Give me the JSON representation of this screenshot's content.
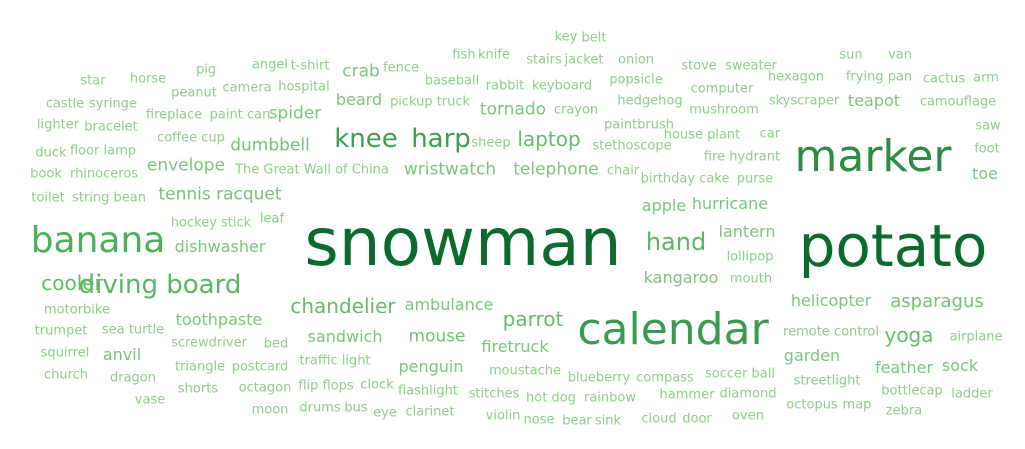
{
  "words": [
    {
      "text": "snowman",
      "size": 66,
      "color": "#0b6b2f"
    },
    {
      "text": "potato",
      "size": 58,
      "color": "#0b6b2f"
    },
    {
      "text": "marker",
      "size": 44,
      "color": "#2f8a46"
    },
    {
      "text": "calendar",
      "size": 44,
      "color": "#3a9a4f"
    },
    {
      "text": "banana",
      "size": 36,
      "color": "#4caf5a"
    },
    {
      "text": "knee",
      "size": 26,
      "color": "#3f9e52"
    },
    {
      "text": "harp",
      "size": 26,
      "color": "#3f9e52"
    },
    {
      "text": "diving board",
      "size": 26,
      "color": "#5ab664"
    },
    {
      "text": "hand",
      "size": 24,
      "color": "#5ab664"
    },
    {
      "text": "cooler",
      "size": 20,
      "color": "#66bb6a"
    },
    {
      "text": "chandelier",
      "size": 20,
      "color": "#66bb6a"
    },
    {
      "text": "laptop",
      "size": 20,
      "color": "#66bb6a"
    },
    {
      "text": "parrot",
      "size": 20,
      "color": "#66bb6a"
    },
    {
      "text": "yoga",
      "size": 20,
      "color": "#66bb6a"
    },
    {
      "text": "asparagus",
      "size": 18,
      "color": "#74c276"
    },
    {
      "text": "tennis racquet",
      "size": 17,
      "color": "#74c276"
    },
    {
      "text": "mouse",
      "size": 17,
      "color": "#74c276"
    },
    {
      "text": "dumbbell",
      "size": 17,
      "color": "#74c276"
    },
    {
      "text": "envelope",
      "size": 17,
      "color": "#7cc57d"
    },
    {
      "text": "wristwatch",
      "size": 17,
      "color": "#7cc57d"
    },
    {
      "text": "telephone",
      "size": 17,
      "color": "#7cc57d"
    },
    {
      "text": "crab",
      "size": 17,
      "color": "#7cc57d"
    },
    {
      "text": "spider",
      "size": 17,
      "color": "#7cc57d"
    },
    {
      "text": "tornado",
      "size": 17,
      "color": "#7cc57d"
    },
    {
      "text": "beard",
      "size": 16,
      "color": "#7cc57d"
    },
    {
      "text": "teapot",
      "size": 16,
      "color": "#7cc57d"
    },
    {
      "text": "toe",
      "size": 16,
      "color": "#7cc57d"
    },
    {
      "text": "apple",
      "size": 16,
      "color": "#7cc57d"
    },
    {
      "text": "hurricane",
      "size": 16,
      "color": "#7cc57d"
    },
    {
      "text": "lantern",
      "size": 16,
      "color": "#7cc57d"
    },
    {
      "text": "kangaroo",
      "size": 16,
      "color": "#7cc57d"
    },
    {
      "text": "helicopter",
      "size": 16,
      "color": "#7cc57d"
    },
    {
      "text": "toothpaste",
      "size": 16,
      "color": "#7cc57d"
    },
    {
      "text": "ambulance",
      "size": 16,
      "color": "#7cc57d"
    },
    {
      "text": "sandwich",
      "size": 16,
      "color": "#7cc57d"
    },
    {
      "text": "firetruck",
      "size": 16,
      "color": "#7cc57d"
    },
    {
      "text": "garden",
      "size": 16,
      "color": "#7cc57d"
    },
    {
      "text": "feather",
      "size": 16,
      "color": "#7cc57d"
    },
    {
      "text": "sock",
      "size": 16,
      "color": "#7cc57d"
    },
    {
      "text": "penguin",
      "size": 16,
      "color": "#7cc57d"
    },
    {
      "text": "anvil",
      "size": 16,
      "color": "#7cc57d"
    },
    {
      "text": "dishwasher",
      "size": 16,
      "color": "#7cc57d"
    },
    {
      "text": "key",
      "size": 13,
      "color": "#8fce8a"
    },
    {
      "text": "belt",
      "size": 13,
      "color": "#8fce8a"
    },
    {
      "text": "fish",
      "size": 13,
      "color": "#8fce8a"
    },
    {
      "text": "knife",
      "size": 13,
      "color": "#8fce8a"
    },
    {
      "text": "stairs",
      "size": 13,
      "color": "#8fce8a"
    },
    {
      "text": "jacket",
      "size": 13,
      "color": "#8fce8a"
    },
    {
      "text": "onion",
      "size": 13,
      "color": "#8fce8a"
    },
    {
      "text": "sun",
      "size": 13,
      "color": "#8fce8a"
    },
    {
      "text": "van",
      "size": 13,
      "color": "#8fce8a"
    },
    {
      "text": "pig",
      "size": 13,
      "color": "#8fce8a"
    },
    {
      "text": "angel",
      "size": 13,
      "color": "#8fce8a"
    },
    {
      "text": "t-shirt",
      "size": 13,
      "color": "#8fce8a"
    },
    {
      "text": "fence",
      "size": 13,
      "color": "#8fce8a"
    },
    {
      "text": "stove",
      "size": 13,
      "color": "#8fce8a"
    },
    {
      "text": "sweater",
      "size": 13,
      "color": "#8fce8a"
    },
    {
      "text": "star",
      "size": 13,
      "color": "#8fce8a"
    },
    {
      "text": "horse",
      "size": 13,
      "color": "#8fce8a"
    },
    {
      "text": "peanut",
      "size": 13,
      "color": "#8fce8a"
    },
    {
      "text": "camera",
      "size": 13,
      "color": "#8fce8a"
    },
    {
      "text": "hospital",
      "size": 13,
      "color": "#8fce8a"
    },
    {
      "text": "baseball",
      "size": 13,
      "color": "#8fce8a"
    },
    {
      "text": "rabbit",
      "size": 13,
      "color": "#8fce8a"
    },
    {
      "text": "keyboard",
      "size": 13,
      "color": "#8fce8a"
    },
    {
      "text": "popsicle",
      "size": 13,
      "color": "#8fce8a"
    },
    {
      "text": "computer",
      "size": 13,
      "color": "#8fce8a"
    },
    {
      "text": "hexagon",
      "size": 13,
      "color": "#8fce8a"
    },
    {
      "text": "frying pan",
      "size": 13,
      "color": "#8fce8a"
    },
    {
      "text": "cactus",
      "size": 13,
      "color": "#8fce8a"
    },
    {
      "text": "arm",
      "size": 13,
      "color": "#8fce8a"
    },
    {
      "text": "castle",
      "size": 13,
      "color": "#8fce8a"
    },
    {
      "text": "syringe",
      "size": 13,
      "color": "#8fce8a"
    },
    {
      "text": "fireplace",
      "size": 13,
      "color": "#8fce8a"
    },
    {
      "text": "paint can",
      "size": 13,
      "color": "#8fce8a"
    },
    {
      "text": "pickup truck",
      "size": 13,
      "color": "#8fce8a"
    },
    {
      "text": "crayon",
      "size": 13,
      "color": "#8fce8a"
    },
    {
      "text": "hedgehog",
      "size": 13,
      "color": "#8fce8a"
    },
    {
      "text": "mushroom",
      "size": 13,
      "color": "#8fce8a"
    },
    {
      "text": "skyscraper",
      "size": 13,
      "color": "#8fce8a"
    },
    {
      "text": "camouflage",
      "size": 13,
      "color": "#8fce8a"
    },
    {
      "text": "lighter",
      "size": 13,
      "color": "#8fce8a"
    },
    {
      "text": "bracelet",
      "size": 13,
      "color": "#8fce8a"
    },
    {
      "text": "coffee cup",
      "size": 13,
      "color": "#8fce8a"
    },
    {
      "text": "paintbrush",
      "size": 13,
      "color": "#8fce8a"
    },
    {
      "text": "saw",
      "size": 13,
      "color": "#8fce8a"
    },
    {
      "text": "duck",
      "size": 13,
      "color": "#8fce8a"
    },
    {
      "text": "floor lamp",
      "size": 13,
      "color": "#8fce8a"
    },
    {
      "text": "sheep",
      "size": 13,
      "color": "#8fce8a"
    },
    {
      "text": "stethoscope",
      "size": 13,
      "color": "#8fce8a"
    },
    {
      "text": "house plant",
      "size": 13,
      "color": "#8fce8a"
    },
    {
      "text": "car",
      "size": 13,
      "color": "#8fce8a"
    },
    {
      "text": "foot",
      "size": 13,
      "color": "#8fce8a"
    },
    {
      "text": "book",
      "size": 13,
      "color": "#8fce8a"
    },
    {
      "text": "rhinoceros",
      "size": 13,
      "color": "#8fce8a"
    },
    {
      "text": "The Great Wall of China",
      "size": 13,
      "color": "#8fce8a"
    },
    {
      "text": "chair",
      "size": 13,
      "color": "#8fce8a"
    },
    {
      "text": "fire hydrant",
      "size": 13,
      "color": "#8fce8a"
    },
    {
      "text": "birthday cake",
      "size": 13,
      "color": "#8fce8a"
    },
    {
      "text": "purse",
      "size": 13,
      "color": "#8fce8a"
    },
    {
      "text": "toilet",
      "size": 13,
      "color": "#8fce8a"
    },
    {
      "text": "string bean",
      "size": 13,
      "color": "#8fce8a"
    },
    {
      "text": "hockey stick",
      "size": 13,
      "color": "#8fce8a"
    },
    {
      "text": "leaf",
      "size": 13,
      "color": "#8fce8a"
    },
    {
      "text": "lollipop",
      "size": 13,
      "color": "#8fce8a"
    },
    {
      "text": "mouth",
      "size": 13,
      "color": "#8fce8a"
    },
    {
      "text": "motorbike",
      "size": 13,
      "color": "#8fce8a"
    },
    {
      "text": "trumpet",
      "size": 13,
      "color": "#8fce8a"
    },
    {
      "text": "sea turtle",
      "size": 13,
      "color": "#8fce8a"
    },
    {
      "text": "remote control",
      "size": 13,
      "color": "#8fce8a"
    },
    {
      "text": "airplane",
      "size": 13,
      "color": "#8fce8a"
    },
    {
      "text": "squirrel",
      "size": 13,
      "color": "#8fce8a"
    },
    {
      "text": "screwdriver",
      "size": 13,
      "color": "#8fce8a"
    },
    {
      "text": "bed",
      "size": 13,
      "color": "#8fce8a"
    },
    {
      "text": "church",
      "size": 13,
      "color": "#8fce8a"
    },
    {
      "text": "triangle",
      "size": 13,
      "color": "#8fce8a"
    },
    {
      "text": "postcard",
      "size": 13,
      "color": "#8fce8a"
    },
    {
      "text": "traffic light",
      "size": 13,
      "color": "#8fce8a"
    },
    {
      "text": "moustache",
      "size": 13,
      "color": "#8fce8a"
    },
    {
      "text": "dragon",
      "size": 13,
      "color": "#8fce8a"
    },
    {
      "text": "blueberry",
      "size": 13,
      "color": "#8fce8a"
    },
    {
      "text": "compass",
      "size": 13,
      "color": "#8fce8a"
    },
    {
      "text": "soccer ball",
      "size": 13,
      "color": "#8fce8a"
    },
    {
      "text": "streetlight",
      "size": 13,
      "color": "#8fce8a"
    },
    {
      "text": "vase",
      "size": 13,
      "color": "#8fce8a"
    },
    {
      "text": "shorts",
      "size": 13,
      "color": "#8fce8a"
    },
    {
      "text": "octagon",
      "size": 13,
      "color": "#8fce8a"
    },
    {
      "text": "flip flops",
      "size": 13,
      "color": "#8fce8a"
    },
    {
      "text": "clock",
      "size": 13,
      "color": "#8fce8a"
    },
    {
      "text": "flashlight",
      "size": 13,
      "color": "#8fce8a"
    },
    {
      "text": "stitches",
      "size": 13,
      "color": "#8fce8a"
    },
    {
      "text": "hot dog",
      "size": 13,
      "color": "#8fce8a"
    },
    {
      "text": "rainbow",
      "size": 13,
      "color": "#8fce8a"
    },
    {
      "text": "hammer",
      "size": 13,
      "color": "#8fce8a"
    },
    {
      "text": "diamond",
      "size": 13,
      "color": "#8fce8a"
    },
    {
      "text": "bottlecap",
      "size": 13,
      "color": "#8fce8a"
    },
    {
      "text": "ladder",
      "size": 13,
      "color": "#8fce8a"
    },
    {
      "text": "moon",
      "size": 13,
      "color": "#8fce8a"
    },
    {
      "text": "drums",
      "size": 13,
      "color": "#8fce8a"
    },
    {
      "text": "bus",
      "size": 13,
      "color": "#8fce8a"
    },
    {
      "text": "eye",
      "size": 13,
      "color": "#8fce8a"
    },
    {
      "text": "clarinet",
      "size": 13,
      "color": "#8fce8a"
    },
    {
      "text": "violin",
      "size": 13,
      "color": "#8fce8a"
    },
    {
      "text": "nose",
      "size": 13,
      "color": "#8fce8a"
    },
    {
      "text": "bear",
      "size": 13,
      "color": "#8fce8a"
    },
    {
      "text": "sink",
      "size": 13,
      "color": "#8fce8a"
    },
    {
      "text": "cloud",
      "size": 13,
      "color": "#8fce8a"
    },
    {
      "text": "door",
      "size": 13,
      "color": "#8fce8a"
    },
    {
      "text": "oven",
      "size": 13,
      "color": "#8fce8a"
    },
    {
      "text": "octopus",
      "size": 13,
      "color": "#8fce8a"
    },
    {
      "text": "map",
      "size": 13,
      "color": "#8fce8a"
    },
    {
      "text": "zebra",
      "size": 13,
      "color": "#8fce8a"
    }
  ]
}
